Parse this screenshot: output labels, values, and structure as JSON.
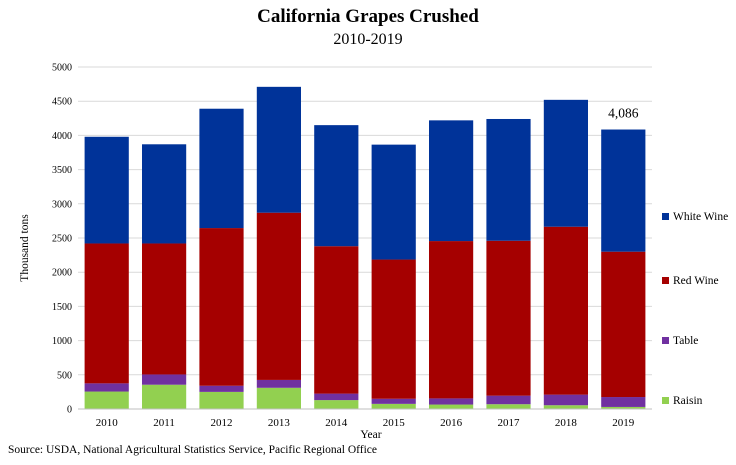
{
  "chart_data": {
    "type": "bar",
    "stacked": true,
    "title": "California Grapes Crushed",
    "subtitle": "2010-2019",
    "xlabel": "Year",
    "ylabel": "Thousand tons",
    "ylim": [
      0,
      5000
    ],
    "yticks": [
      0,
      500,
      1000,
      1500,
      2000,
      2500,
      3000,
      3500,
      4000,
      4500,
      5000
    ],
    "grid": "horizontal",
    "legend_position": "right",
    "categories": [
      "2010",
      "2011",
      "2012",
      "2013",
      "2014",
      "2015",
      "2016",
      "2017",
      "2018",
      "2019"
    ],
    "series": [
      {
        "name": "Raisin",
        "color": "#92d050",
        "values": [
          255,
          355,
          250,
          310,
          130,
          75,
          65,
          70,
          55,
          30
        ]
      },
      {
        "name": "Table",
        "color": "#7030a0",
        "values": [
          120,
          150,
          90,
          115,
          95,
          75,
          90,
          125,
          155,
          145
        ]
      },
      {
        "name": "Red Wine",
        "color": "#a50000",
        "values": [
          2045,
          1915,
          2305,
          2445,
          2155,
          2035,
          2300,
          2265,
          2455,
          2125
        ]
      },
      {
        "name": "White Wine",
        "color": "#003399",
        "values": [
          1560,
          1450,
          1745,
          1840,
          1770,
          1680,
          1765,
          1780,
          1855,
          1786
        ]
      }
    ],
    "data_labels": [
      {
        "category": "2019",
        "text": "4,086"
      }
    ]
  },
  "source": "Source: USDA, National Agricultural Statistics Service, Pacific Regional Office"
}
